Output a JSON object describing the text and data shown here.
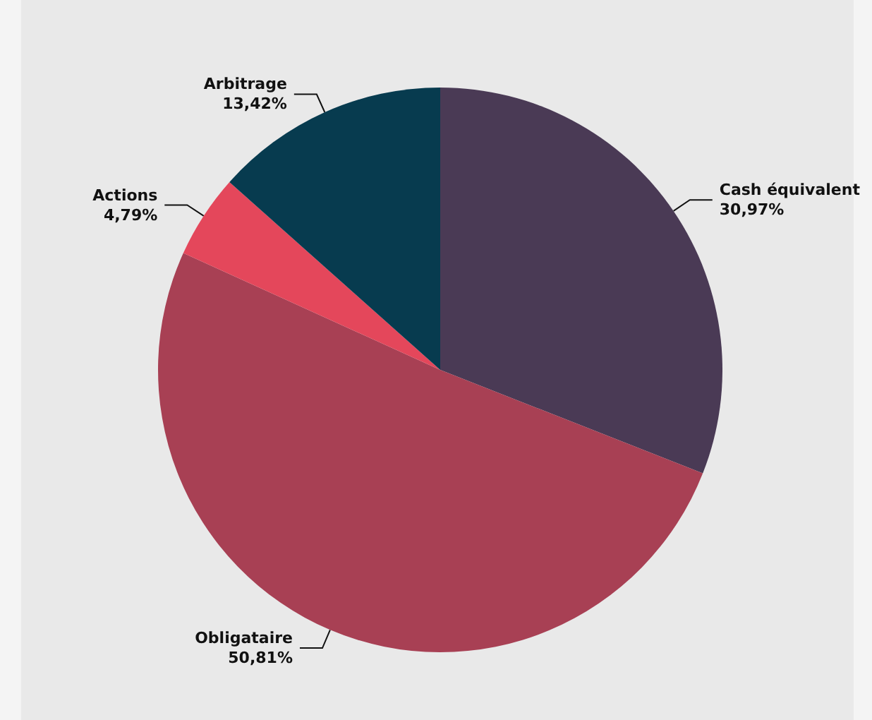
{
  "chart_data": {
    "type": "pie",
    "categories": [
      "Cash équivalent",
      "Obligataire",
      "Actions",
      "Arbitrage"
    ],
    "values": [
      30.97,
      50.81,
      4.79,
      13.42
    ],
    "value_labels": [
      "30,97%",
      "50,81%",
      "4,79%",
      "13,42%"
    ],
    "colors": [
      "#4a3a55",
      "#a84054",
      "#e4475b",
      "#073b4f"
    ],
    "legend": false
  }
}
